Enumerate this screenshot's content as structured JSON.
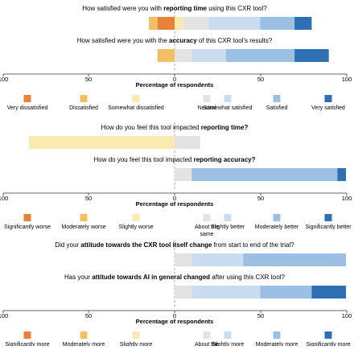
{
  "chart_data": [
    {
      "type": "diverging-stacked-bar",
      "xlabel": "Percentage of respondents",
      "xlim": [
        -100,
        100
      ],
      "xticks": [
        100,
        50,
        0,
        50,
        100
      ],
      "questions": [
        {
          "prefix": "How satisfied were you with ",
          "bold": "reporting time",
          "suffix": " using this CXR tool?",
          "segments": [
            -10,
            -5,
            5,
            15,
            30,
            20,
            10
          ]
        },
        {
          "prefix": "How satisfied were you with the ",
          "bold": "accuracy",
          "suffix": " of this CXR tool's results?",
          "segments": [
            0,
            -10,
            0,
            10,
            20,
            40,
            20
          ]
        }
      ],
      "legend": [
        {
          "label": "Very dissatisfied",
          "color": "#e8823a"
        },
        {
          "label": "Dissatisfied",
          "color": "#f1c065"
        },
        {
          "label": "Somewhat dissatisfied",
          "color": "#faeab0"
        },
        {
          "label": "Neutral",
          "color": "#e3e3e3"
        },
        {
          "label": "Somewhat satisfied",
          "color": "#c9dcf0"
        },
        {
          "label": "Satisfied",
          "color": "#9cc0e4"
        },
        {
          "label": "Very satisfied",
          "color": "#2f6fb3"
        }
      ]
    },
    {
      "type": "diverging-stacked-bar",
      "xlabel": "Percentage of respondents",
      "xlim": [
        -100,
        100
      ],
      "xticks": [
        100,
        50,
        0,
        50,
        100
      ],
      "questions": [
        {
          "prefix": "How do you feel this tool impacted ",
          "bold": "reporting time?",
          "suffix": "",
          "segments": [
            0,
            0,
            -85,
            15,
            0,
            0,
            0
          ]
        },
        {
          "prefix": "How do you feel this tool impacted ",
          "bold": "reporting accuracy?",
          "suffix": "",
          "segments": [
            0,
            0,
            0,
            10,
            0,
            85,
            5
          ]
        }
      ],
      "legend": [
        {
          "label": "Significantly worse",
          "color": "#e8823a"
        },
        {
          "label": "Moderately worse",
          "color": "#f1c065"
        },
        {
          "label": "Slightly worse",
          "color": "#faeab0"
        },
        {
          "label": "About the same",
          "color": "#e3e3e3"
        },
        {
          "label": "Slightly better",
          "color": "#c9dcf0"
        },
        {
          "label": "Moderately better",
          "color": "#9cc0e4"
        },
        {
          "label": "Significantly better",
          "color": "#2f6fb3"
        }
      ]
    },
    {
      "type": "diverging-stacked-bar",
      "xlabel": "Percentage of respondents",
      "xlim": [
        -100,
        100
      ],
      "xticks": [
        100,
        50,
        0,
        50,
        100
      ],
      "questions": [
        {
          "prefix": "Did your ",
          "bold": "attitude towards the CXR tool itself change",
          "suffix": " from start to end of the trial?",
          "segments": [
            0,
            0,
            0,
            10,
            30,
            60,
            0
          ]
        },
        {
          "prefix": "Has your ",
          "bold": "attitude towards AI in general changed",
          "suffix": " after using this CXR tool?",
          "segments": [
            0,
            0,
            0,
            10,
            40,
            30,
            20
          ]
        }
      ],
      "legend": [
        {
          "label": "Significantly more negative",
          "color": "#e8823a"
        },
        {
          "label": "Moderately more negative",
          "color": "#f1c065"
        },
        {
          "label": "Slightly more negative",
          "color": "#faeab0"
        },
        {
          "label": "About the same",
          "color": "#e3e3e3"
        },
        {
          "label": "Slightly more positive",
          "color": "#c9dcf0"
        },
        {
          "label": "Moderately more positive",
          "color": "#9cc0e4"
        },
        {
          "label": "Significantly more positive",
          "color": "#2f6fb3"
        }
      ]
    }
  ]
}
